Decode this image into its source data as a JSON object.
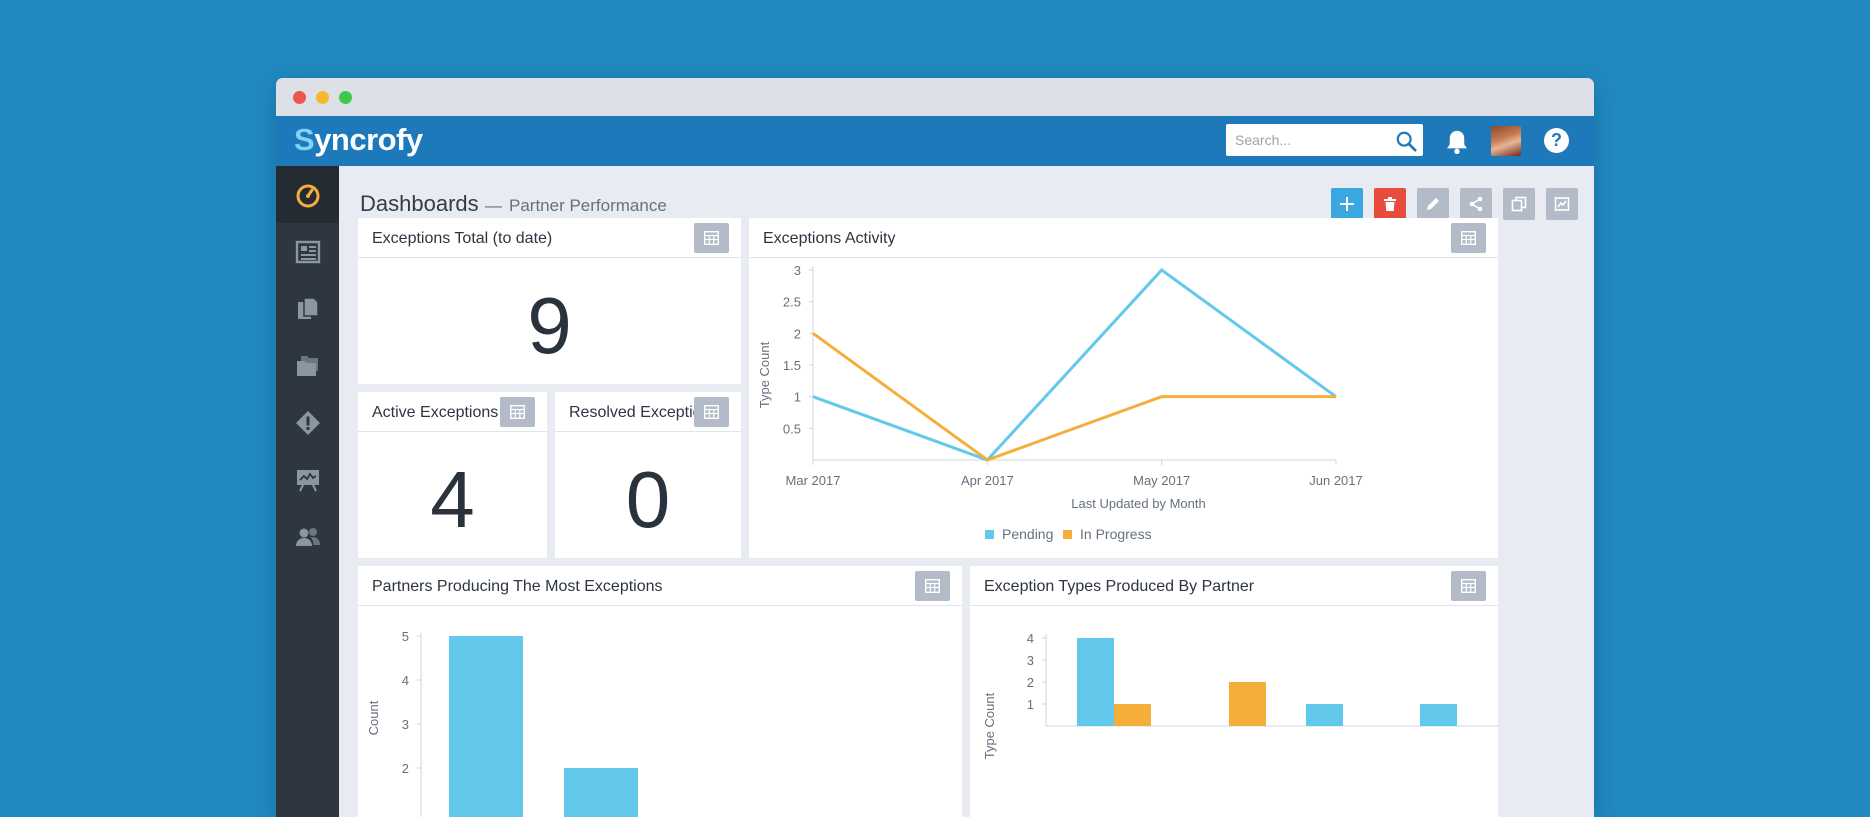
{
  "app": {
    "logo_first": "S",
    "logo_rest": "yncrofy"
  },
  "header": {
    "search_placeholder": "Search..."
  },
  "colors": {
    "accent": "#1d79ba",
    "pending": "#62c8ec",
    "in_progress": "#f6ae3b",
    "delete": "#e74c3c",
    "add": "#3ba7e0"
  },
  "sidebar": {
    "items": [
      {
        "icon": "dashboard-icon",
        "active": true
      },
      {
        "icon": "list-view-icon",
        "active": false
      },
      {
        "icon": "documents-icon",
        "active": false
      },
      {
        "icon": "folders-icon",
        "active": false
      },
      {
        "icon": "exception-alert-icon",
        "active": false
      },
      {
        "icon": "presentation-chart-icon",
        "active": false
      },
      {
        "icon": "users-icon",
        "active": false
      }
    ]
  },
  "page": {
    "title": "Dashboards",
    "dash": "—",
    "subtitle": "Partner Performance"
  },
  "toolbar": {
    "buttons": [
      "add-icon",
      "delete-icon",
      "edit-icon",
      "share-icon",
      "copy-icon",
      "chart-icon"
    ]
  },
  "panels": {
    "exceptions_total": {
      "title": "Exceptions Total (to date)",
      "value": "9"
    },
    "active_exceptions": {
      "title": "Active Exceptions",
      "value": "4"
    },
    "resolved_exceptions": {
      "title": "Resolved Exceptions",
      "value": "0"
    },
    "exceptions_activity": {
      "title": "Exceptions Activity"
    },
    "partners_most": {
      "title": "Partners Producing The Most Exceptions"
    },
    "types_by_partner": {
      "title": "Exception Types Produced By Partner"
    }
  },
  "chart_data": [
    {
      "type": "line",
      "title": "Exceptions Activity",
      "xlabel": "Last Updated by Month",
      "ylabel": "Type Count",
      "categories": [
        "Mar 2017",
        "Apr 2017",
        "May 2017",
        "Jun 2017"
      ],
      "yticks": [
        "0.5",
        "1",
        "1.5",
        "2",
        "2.5",
        "3"
      ],
      "ylim": [
        0,
        3
      ],
      "series": [
        {
          "name": "Pending",
          "color": "#62c8ec",
          "values": [
            1,
            0,
            3,
            1
          ]
        },
        {
          "name": "In Progress",
          "color": "#f6ae3b",
          "values": [
            2,
            0,
            1,
            1
          ]
        }
      ],
      "legend": "bottom",
      "grid": false
    },
    {
      "type": "bar",
      "title": "Partners Producing The Most Exceptions",
      "ylabel": "Count",
      "yticks": [
        "2",
        "3",
        "4",
        "5"
      ],
      "ylim": [
        0,
        5
      ],
      "values": [
        5,
        2
      ],
      "color": "#62c8ec"
    },
    {
      "type": "bar",
      "title": "Exception Types Produced By Partner",
      "ylabel": "Type Count",
      "yticks": [
        "1",
        "2",
        "3",
        "4"
      ],
      "ylim": [
        0,
        4
      ],
      "series": [
        {
          "color": "#62c8ec",
          "values": [
            4,
            0,
            1,
            1
          ]
        },
        {
          "color": "#f6ae3b",
          "values": [
            1,
            2,
            0,
            0
          ]
        }
      ]
    }
  ]
}
